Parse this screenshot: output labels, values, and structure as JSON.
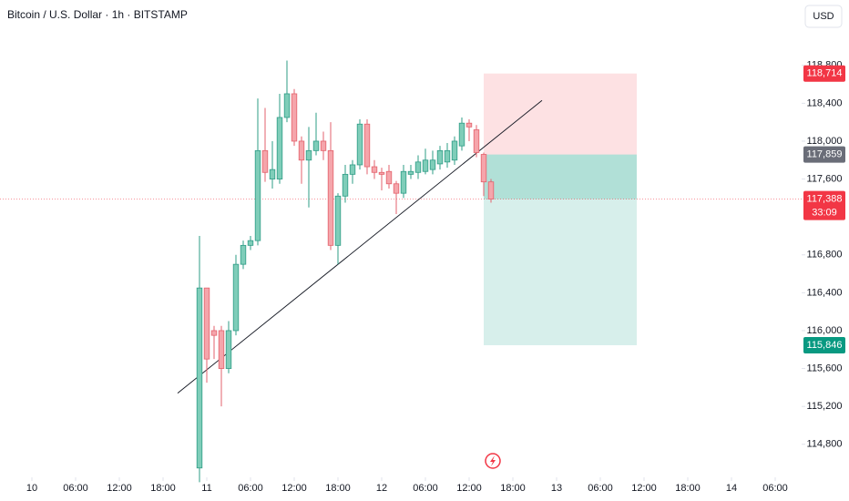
{
  "chart_data": {
    "type": "candlestick",
    "title": "Bitcoin / U.S. Dollar · 1h · BITSTAMP",
    "currency": "USD",
    "x": [
      23,
      24,
      25,
      26,
      27,
      28,
      29,
      30,
      31,
      32,
      33,
      34,
      35,
      36,
      37,
      38,
      39,
      40,
      41,
      42,
      43,
      44,
      45,
      46,
      47,
      48,
      49,
      50,
      51,
      52,
      53,
      54,
      55,
      56,
      57,
      58,
      59,
      60,
      61,
      62,
      63
    ],
    "open": [
      114550,
      116450,
      116000,
      116000,
      115600,
      116000,
      116700,
      116900,
      116950,
      117900,
      117600,
      117600,
      118250,
      118500,
      118000,
      117800,
      117900,
      118000,
      117900,
      116900,
      117420,
      117650,
      117750,
      118180,
      117730,
      117670,
      117680,
      117550,
      117450,
      117650,
      117670,
      117680,
      117700,
      117760,
      117780,
      117800,
      117950,
      118190,
      118120,
      117860,
      117570
    ],
    "high": [
      117000,
      116450,
      116050,
      116050,
      116100,
      116800,
      116950,
      117000,
      118450,
      118350,
      118000,
      118500,
      118850,
      118550,
      118050,
      118150,
      118300,
      118100,
      118200,
      117450,
      117750,
      117800,
      118230,
      118230,
      117800,
      117720,
      117750,
      117580,
      117750,
      117750,
      117850,
      117920,
      117900,
      117950,
      117980,
      118050,
      118250,
      118230,
      118170,
      117880,
      117600
    ],
    "low": [
      114400,
      115450,
      115700,
      115200,
      115550,
      115950,
      116650,
      116850,
      116900,
      117570,
      117500,
      117550,
      118200,
      117950,
      117550,
      117300,
      117850,
      117800,
      116850,
      116700,
      117350,
      117550,
      117700,
      117650,
      117600,
      117480,
      117500,
      117230,
      117400,
      117600,
      117600,
      117650,
      117650,
      117700,
      117720,
      117750,
      117900,
      118000,
      117830,
      117420,
      117350
    ],
    "close": [
      116450,
      115700,
      115950,
      115600,
      116000,
      116700,
      116900,
      116950,
      117900,
      117670,
      117700,
      118250,
      118500,
      118000,
      117800,
      117900,
      118000,
      117900,
      116900,
      117420,
      117650,
      117750,
      118180,
      117730,
      117670,
      117650,
      117550,
      117450,
      117680,
      117680,
      117780,
      117800,
      117800,
      117900,
      117900,
      118000,
      118190,
      118150,
      117880,
      117570,
      117388
    ],
    "up_color": "#2e9c86",
    "up_fill": "#7fcdb9",
    "down_color": "#e3626c",
    "down_fill": "#f5a5ab",
    "xlim": [
      -4.375,
      105.625
    ],
    "xticks": [
      {
        "value": 0,
        "label": "10"
      },
      {
        "value": 6,
        "label": "06:00"
      },
      {
        "value": 12,
        "label": "12:00"
      },
      {
        "value": 18,
        "label": "18:00"
      },
      {
        "value": 24,
        "label": "11"
      },
      {
        "value": 30,
        "label": "06:00"
      },
      {
        "value": 36,
        "label": "12:00"
      },
      {
        "value": 42,
        "label": "18:00"
      },
      {
        "value": 48,
        "label": "12"
      },
      {
        "value": 54,
        "label": "06:00"
      },
      {
        "value": 60,
        "label": "12:00"
      },
      {
        "value": 66,
        "label": "18:00"
      },
      {
        "value": 72,
        "label": "13"
      },
      {
        "value": 78,
        "label": "06:00"
      },
      {
        "value": 84,
        "label": "12:00"
      },
      {
        "value": 90,
        "label": "18:00"
      },
      {
        "value": 96,
        "label": "14"
      },
      {
        "value": 102,
        "label": "06:00"
      }
    ],
    "ylim": [
      114490,
      119490
    ],
    "yticks": [
      {
        "value": 118800,
        "label": "118,800"
      },
      {
        "value": 118400,
        "label": "118,400"
      },
      {
        "value": 118000,
        "label": "118,000"
      },
      {
        "value": 117600,
        "label": "117,600"
      },
      {
        "value": 116800,
        "label": "116,800"
      },
      {
        "value": 116400,
        "label": "116,400"
      },
      {
        "value": 116000,
        "label": "116,000"
      },
      {
        "value": 115600,
        "label": "115,600"
      },
      {
        "value": 115200,
        "label": "115,200"
      },
      {
        "value": 114800,
        "label": "114,800"
      }
    ],
    "trendline": {
      "x": [
        20,
        70
      ],
      "y": [
        115340,
        118430
      ]
    },
    "position": {
      "x": [
        62,
        83
      ],
      "target": {
        "value": 118714,
        "label": "118,714"
      },
      "entry": {
        "value": 117859,
        "label": "117,859"
      },
      "stop": {
        "value": 115846,
        "label": "115,846"
      }
    },
    "last_price": {
      "value": 117388,
      "label": "117,388",
      "countdown": "33:09"
    }
  }
}
